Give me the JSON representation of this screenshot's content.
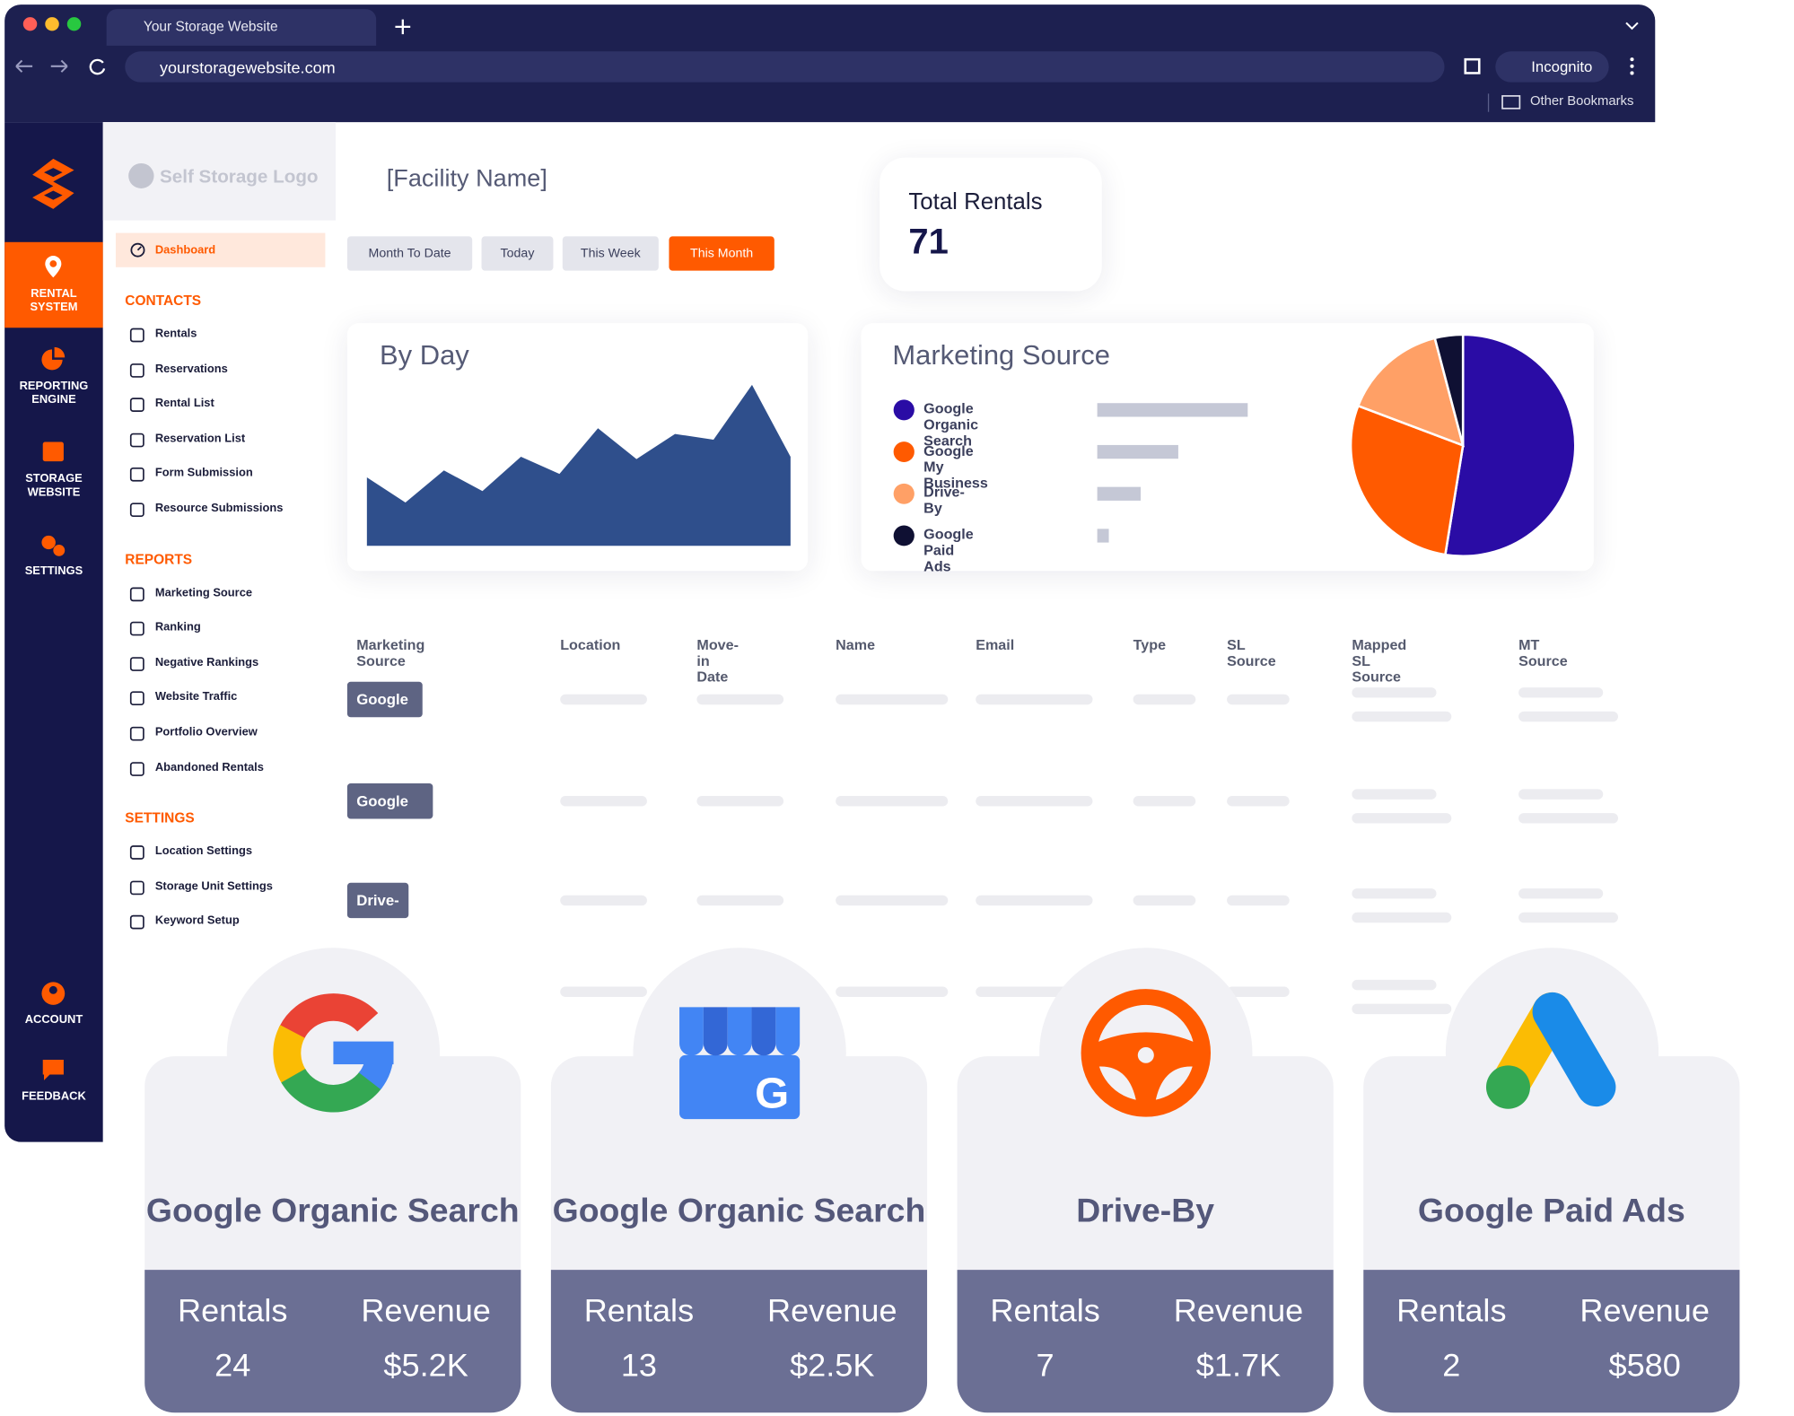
{
  "browser": {
    "tab_title": "Your Storage Website",
    "url": "yourstoragewebsite.com",
    "profile": "Incognito",
    "bookmarks": "Other Bookmarks"
  },
  "rail": [
    "RENTAL SYSTEM",
    "REPORTING ENGINE",
    "STORAGE WEBSITE",
    "SETTINGS",
    "ACCOUNT",
    "FEEDBACK"
  ],
  "logo": "Self Storage Logo",
  "sidebar": {
    "dashboard": "Dashboard",
    "sections": [
      {
        "title": "CONTACTS",
        "items": [
          "Rentals",
          "Reservations",
          "Rental List",
          "Reservation List",
          "Form Submission",
          "Resource Submissions"
        ]
      },
      {
        "title": "REPORTS",
        "items": [
          "Marketing Source",
          "Ranking",
          "Negative Rankings",
          "Website Traffic",
          "Portfolio Overview",
          "Abandoned Rentals"
        ]
      },
      {
        "title": "SETTINGS",
        "items": [
          "Location Settings",
          "Storage Unit Settings",
          "Keyword Setup"
        ]
      }
    ]
  },
  "facility": "[Facility Name]",
  "filters": [
    "Month To Date",
    "Today",
    "This Week",
    "This Month"
  ],
  "total_rentals": {
    "label": "Total Rentals",
    "value": 71
  },
  "chart_data": [
    {
      "type": "area",
      "title": "By Day",
      "values": [
        60,
        38,
        66,
        48,
        78,
        63,
        103,
        76,
        98,
        93,
        141,
        78
      ],
      "color": "#2f4f8c"
    },
    {
      "type": "pie",
      "title": "Marketing Source",
      "categories": [
        "Google Organic Search",
        "Google My Business",
        "Drive-By",
        "Google Paid Ads"
      ],
      "values": [
        52,
        28,
        15,
        4
      ],
      "colors": [
        "#2a0ca5",
        "#ff5a00",
        "#ffa066",
        "#0f1033"
      ],
      "bar_color": "#c5c8d6"
    }
  ],
  "table": {
    "columns": [
      "Marketing Source",
      "Location",
      "Move-in Date",
      "Name",
      "Email",
      "Type",
      "SL Source",
      "Mapped SL Source",
      "MT Source"
    ],
    "rows": [
      "Google Organic Search",
      "Google My Business",
      "Drive-By"
    ]
  },
  "card_labels": {
    "rentals": "Rentals",
    "revenue": "Revenue"
  },
  "cards": [
    {
      "title": "Google Organic Search",
      "rentals": 24,
      "revenue": "$5.2K"
    },
    {
      "title": "Google Organic Search",
      "rentals": 13,
      "revenue": "$2.5K"
    },
    {
      "title": "Drive-By",
      "rentals": 7,
      "revenue": "$1.7K"
    },
    {
      "title": "Google Paid Ads",
      "rentals": 2,
      "revenue": "$580"
    }
  ]
}
